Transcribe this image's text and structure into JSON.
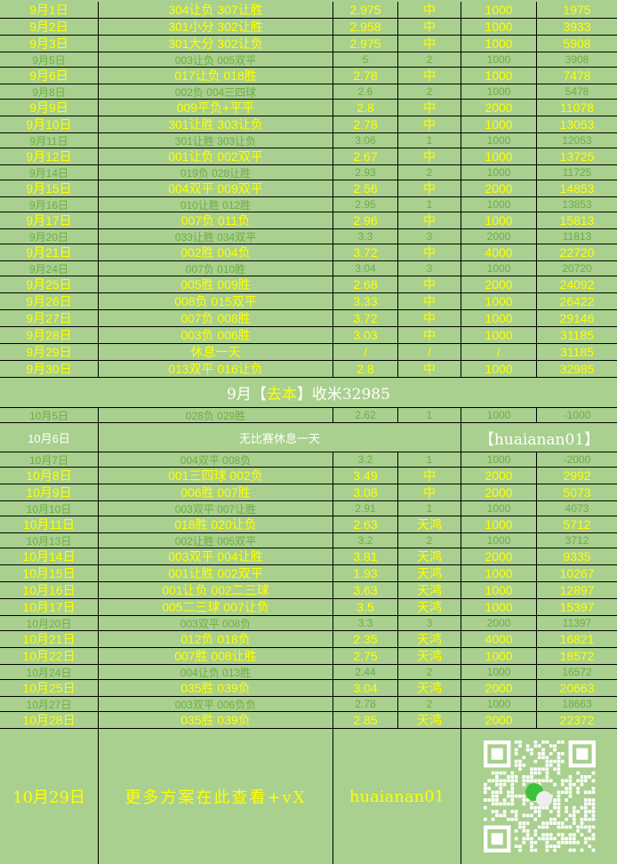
{
  "colors": {
    "background": "#a9d08e",
    "hit_text": "#ffff00",
    "miss_text": "#70ad47",
    "grid": "#000000"
  },
  "september_rows": [
    {
      "date": "9月1日",
      "picks": "304让负 307让胜",
      "odds": "2.975",
      "result": "中",
      "stake": "1000",
      "balance": "1975"
    },
    {
      "date": "9月2日",
      "picks": "301小分 302让胜",
      "odds": "2.958",
      "result": "中",
      "stake": "1000",
      "balance": "3933"
    },
    {
      "date": "9月3日",
      "picks": "301大分 302让负",
      "odds": "2.975",
      "result": "中",
      "stake": "1000",
      "balance": "5908"
    },
    {
      "date": "9月5日",
      "picks": "003让负 005双平",
      "odds": "5",
      "result": "2",
      "stake": "1000",
      "balance": "3908"
    },
    {
      "date": "9月6日",
      "picks": "017让负 018胜",
      "odds": "2.78",
      "result": "中",
      "stake": "1000",
      "balance": "7478"
    },
    {
      "date": "9月8日",
      "picks": "002负 004三四球",
      "odds": "2.6",
      "result": "2",
      "stake": "1000",
      "balance": "5478"
    },
    {
      "date": "9月9日",
      "picks": "009平负+平平",
      "odds": "2.8",
      "result": "中",
      "stake": "2000",
      "balance": "11078"
    },
    {
      "date": "9月10日",
      "picks": "301让胜 303让负",
      "odds": "2.78",
      "result": "中",
      "stake": "1000",
      "balance": "13053"
    },
    {
      "date": "9月11日",
      "picks": "301让胜  303让负",
      "odds": "3.06",
      "result": "1",
      "stake": "1000",
      "balance": "12053"
    },
    {
      "date": "9月12日",
      "picks": "001让负 002双平",
      "odds": "2.67",
      "result": "中",
      "stake": "1000",
      "balance": "13725"
    },
    {
      "date": "9月14日",
      "picks": "019负 028让胜",
      "odds": "2.93",
      "result": "2",
      "stake": "1000",
      "balance": "11725"
    },
    {
      "date": "9月15日",
      "picks": "004双平 009双平",
      "odds": "2.56",
      "result": "中",
      "stake": "2000",
      "balance": "14853"
    },
    {
      "date": "9月16日",
      "picks": "010让胜 012胜",
      "odds": "2.95",
      "result": "1",
      "stake": "1000",
      "balance": "13853"
    },
    {
      "date": "9月17日",
      "picks": "007负 011负",
      "odds": "2.96",
      "result": "中",
      "stake": "1000",
      "balance": "15813"
    },
    {
      "date": "9月20日",
      "picks": "033让胜 034双平",
      "odds": "3.3",
      "result": "3",
      "stake": "2000",
      "balance": "11813"
    },
    {
      "date": "9月21日",
      "picks": "002胜 004负",
      "odds": "3.72",
      "result": "中",
      "stake": "4000",
      "balance": "22720"
    },
    {
      "date": "9月24日",
      "picks": "007负 010胜",
      "odds": "3.04",
      "result": "3",
      "stake": "1000",
      "balance": "20720"
    },
    {
      "date": "9月25日",
      "picks": "005胜 009胜",
      "odds": "2.68",
      "result": "中",
      "stake": "2000",
      "balance": "24092"
    },
    {
      "date": "9月26日",
      "picks": "008负 015双平",
      "odds": "3.33",
      "result": "中",
      "stake": "1000",
      "balance": "26422"
    },
    {
      "date": "9月27日",
      "picks": "007负 008胜",
      "odds": "3.72",
      "result": "中",
      "stake": "1000",
      "balance": "29146"
    },
    {
      "date": "9月28日",
      "picks": "003负 006胜",
      "odds": "3.03",
      "result": "中",
      "stake": "1000",
      "balance": "31185"
    },
    {
      "date": "9月29日",
      "picks": "休息一天",
      "odds": "/",
      "result": "/",
      "stake": "/",
      "balance": "31185"
    },
    {
      "date": "9月30日",
      "picks": "013双平 016让负",
      "odds": "2.8",
      "result": "中",
      "stake": "1000",
      "balance": "32985"
    }
  ],
  "summary": {
    "prefix": "9月【",
    "highlight": "去本",
    "suffix": "】收米32985"
  },
  "october_first": {
    "date": "10月5日",
    "picks": "028负 029胜",
    "odds": "2.62",
    "result": "1",
    "stake": "1000",
    "balance": "-1000"
  },
  "rest_day": {
    "date": "10月6日",
    "note": "无比赛休息一天",
    "contact": "【huaianan01】"
  },
  "october_rows": [
    {
      "date": "10月7日",
      "picks": "004双平 008负",
      "odds": "3.2",
      "result": "1",
      "stake": "1000",
      "balance": "-2000"
    },
    {
      "date": "10月8日",
      "picks": "001三四球 002负",
      "odds": "3.49",
      "result": "中",
      "stake": "2000",
      "balance": "2992"
    },
    {
      "date": "10月9日",
      "picks": "006胜 007胜",
      "odds": "3.08",
      "result": "中",
      "stake": "2000",
      "balance": "5073"
    },
    {
      "date": "10月10日",
      "picks": "003双平 007让胜",
      "odds": "2.91",
      "result": "1",
      "stake": "1000",
      "balance": "4073"
    },
    {
      "date": "10月11日",
      "picks": "018胜 020让负",
      "odds": "2.63",
      "result": "天鸿",
      "stake": "1000",
      "balance": "5712"
    },
    {
      "date": "10月13日",
      "picks": "002让胜 005双平",
      "odds": "3.2",
      "result": "2",
      "stake": "1000",
      "balance": "3712"
    },
    {
      "date": "10月14日",
      "picks": "003双平 004让胜",
      "odds": "3.81",
      "result": "天鸿",
      "stake": "2000",
      "balance": "9335"
    },
    {
      "date": "10月15日",
      "picks": "001让胜 002双平",
      "odds": "1.93",
      "result": "天鸿",
      "stake": "1000",
      "balance": "10267"
    },
    {
      "date": "10月16日",
      "picks": "001让负 002二三球",
      "odds": "3.63",
      "result": "天鸿",
      "stake": "1000",
      "balance": "12897"
    },
    {
      "date": "10月17日",
      "picks": "005二三球 007让负",
      "odds": "3.5",
      "result": "天鸿",
      "stake": "1000",
      "balance": "15397"
    },
    {
      "date": "10月20日",
      "picks": "003双平 008负",
      "odds": "3.3",
      "result": "3",
      "stake": "2000",
      "balance": "11397"
    },
    {
      "date": "10月21日",
      "picks": "012负 018负",
      "odds": "2.35",
      "result": "天鸿",
      "stake": "4000",
      "balance": "16821"
    },
    {
      "date": "10月22日",
      "picks": "007胜 008让胜",
      "odds": "2.75",
      "result": "天鸿",
      "stake": "1000",
      "balance": "18572"
    },
    {
      "date": "10月24日",
      "picks": "004让负 013胜",
      "odds": "2.44",
      "result": "2",
      "stake": "1000",
      "balance": "16572"
    },
    {
      "date": "10月25日",
      "picks": "035胜 039负",
      "odds": "3.04",
      "result": "天鸿",
      "stake": "2000",
      "balance": "20663"
    },
    {
      "date": "10月27日",
      "picks": "003双平 006负负",
      "odds": "2.78",
      "result": "2",
      "stake": "1000",
      "balance": "18663"
    },
    {
      "date": "10月28日",
      "picks": "035胜 039负",
      "odds": "2.85",
      "result": "天鸿",
      "stake": "2000",
      "balance": "22372"
    }
  ],
  "footer": {
    "date": "10月29日",
    "message": "更多方案在此查看+vX",
    "wechat_id": "huaianan01",
    "qr_icon": "wechat-qr-code"
  }
}
